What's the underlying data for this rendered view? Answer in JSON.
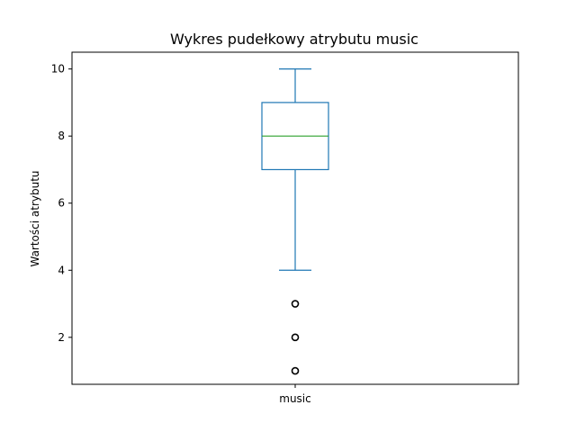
{
  "chart_data": {
    "type": "box",
    "title": "Wykres pudełkowy atrybutu music",
    "xlabel": "",
    "ylabel": "Wartości atrybutu",
    "categories": [
      "music"
    ],
    "ylim": [
      0.6,
      10.5
    ],
    "yticks": [
      2,
      4,
      6,
      8,
      10
    ],
    "grid": false,
    "boxes": [
      {
        "category": "music",
        "whisker_low": 4,
        "q1": 7,
        "median": 8,
        "q3": 9,
        "whisker_high": 10,
        "outliers": [
          3,
          2,
          1
        ]
      }
    ],
    "colors": {
      "box": "#1f77b4",
      "median": "#2ca02c",
      "outlier": "#000000"
    }
  }
}
